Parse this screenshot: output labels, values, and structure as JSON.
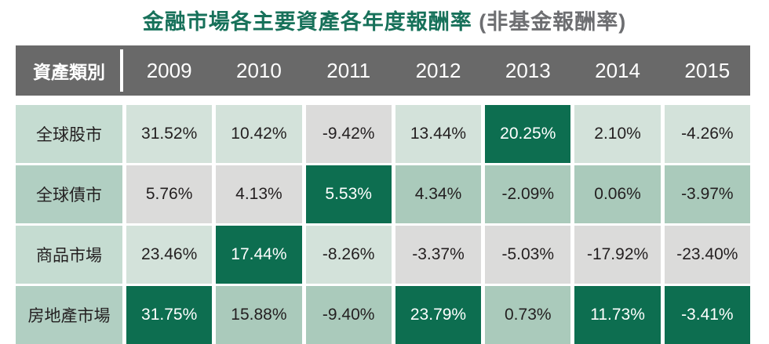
{
  "title": {
    "main": "金融市場各主要資產各年度報酬率",
    "suffix": " (非基金報酬率)"
  },
  "colors": {
    "title_green": "#17715a",
    "title_gray": "#6d6e71",
    "header_bg": "#696969",
    "header_text": "#ffffff",
    "best_of_year_bg": "#0d6e50",
    "worst_of_year_bg": "#dbdbda",
    "mint_light_bg": "#d3e2da",
    "mint_medium_bg": "#aacabb",
    "value_text": "#231f20"
  },
  "table": {
    "header": {
      "label": "資產類別",
      "years": [
        "2009",
        "2010",
        "2011",
        "2012",
        "2013",
        "2014",
        "2015"
      ]
    },
    "rows": [
      {
        "label": "全球股市",
        "label_style": "light",
        "cells": [
          {
            "value": "31.52%",
            "style": "light"
          },
          {
            "value": "10.42%",
            "style": "light"
          },
          {
            "value": "-9.42%",
            "style": "gray"
          },
          {
            "value": "13.44%",
            "style": "light"
          },
          {
            "value": "20.25%",
            "style": "dark"
          },
          {
            "value": "2.10%",
            "style": "light"
          },
          {
            "value": "-4.26%",
            "style": "light"
          }
        ]
      },
      {
        "label": "全球債市",
        "label_style": "medium",
        "cells": [
          {
            "value": "5.76%",
            "style": "gray"
          },
          {
            "value": "4.13%",
            "style": "gray"
          },
          {
            "value": "5.53%",
            "style": "dark"
          },
          {
            "value": "4.34%",
            "style": "medium"
          },
          {
            "value": "-2.09%",
            "style": "medium"
          },
          {
            "value": "0.06%",
            "style": "medium"
          },
          {
            "value": "-3.97%",
            "style": "medium"
          }
        ]
      },
      {
        "label": "商品市場",
        "label_style": "light",
        "cells": [
          {
            "value": "23.46%",
            "style": "light"
          },
          {
            "value": "17.44%",
            "style": "dark"
          },
          {
            "value": "-8.26%",
            "style": "light"
          },
          {
            "value": "-3.37%",
            "style": "gray"
          },
          {
            "value": "-5.03%",
            "style": "gray"
          },
          {
            "value": "-17.92%",
            "style": "gray"
          },
          {
            "value": "-23.40%",
            "style": "gray"
          }
        ]
      },
      {
        "label": "房地產市場",
        "label_style": "medium",
        "cells": [
          {
            "value": "31.75%",
            "style": "dark"
          },
          {
            "value": "15.88%",
            "style": "medium"
          },
          {
            "value": "-9.40%",
            "style": "medium"
          },
          {
            "value": "23.79%",
            "style": "dark"
          },
          {
            "value": "0.73%",
            "style": "medium"
          },
          {
            "value": "11.73%",
            "style": "dark"
          },
          {
            "value": "-3.41%",
            "style": "dark"
          }
        ]
      }
    ]
  },
  "chart_data": {
    "type": "table",
    "title": "金融市場各主要資產各年度報酬率 (非基金報酬率)",
    "categories": [
      "2009",
      "2010",
      "2011",
      "2012",
      "2013",
      "2014",
      "2015"
    ],
    "series": [
      {
        "name": "全球股市",
        "values": [
          31.52,
          10.42,
          -9.42,
          13.44,
          20.25,
          2.1,
          -4.26
        ]
      },
      {
        "name": "全球債市",
        "values": [
          5.76,
          4.13,
          5.53,
          4.34,
          -2.09,
          0.06,
          -3.97
        ]
      },
      {
        "name": "商品市場",
        "values": [
          23.46,
          17.44,
          -8.26,
          -3.37,
          -5.03,
          -17.92,
          -23.4
        ]
      },
      {
        "name": "房地產市場",
        "values": [
          31.75,
          15.88,
          -9.4,
          23.79,
          0.73,
          11.73,
          -3.41
        ]
      }
    ],
    "unit": "%",
    "highlight_rules": {
      "best_of_year": "dark-green-white-text",
      "worst_of_year": "light-gray",
      "other_rows_1_3": "light-mint",
      "other_rows_2_4": "medium-mint"
    }
  }
}
